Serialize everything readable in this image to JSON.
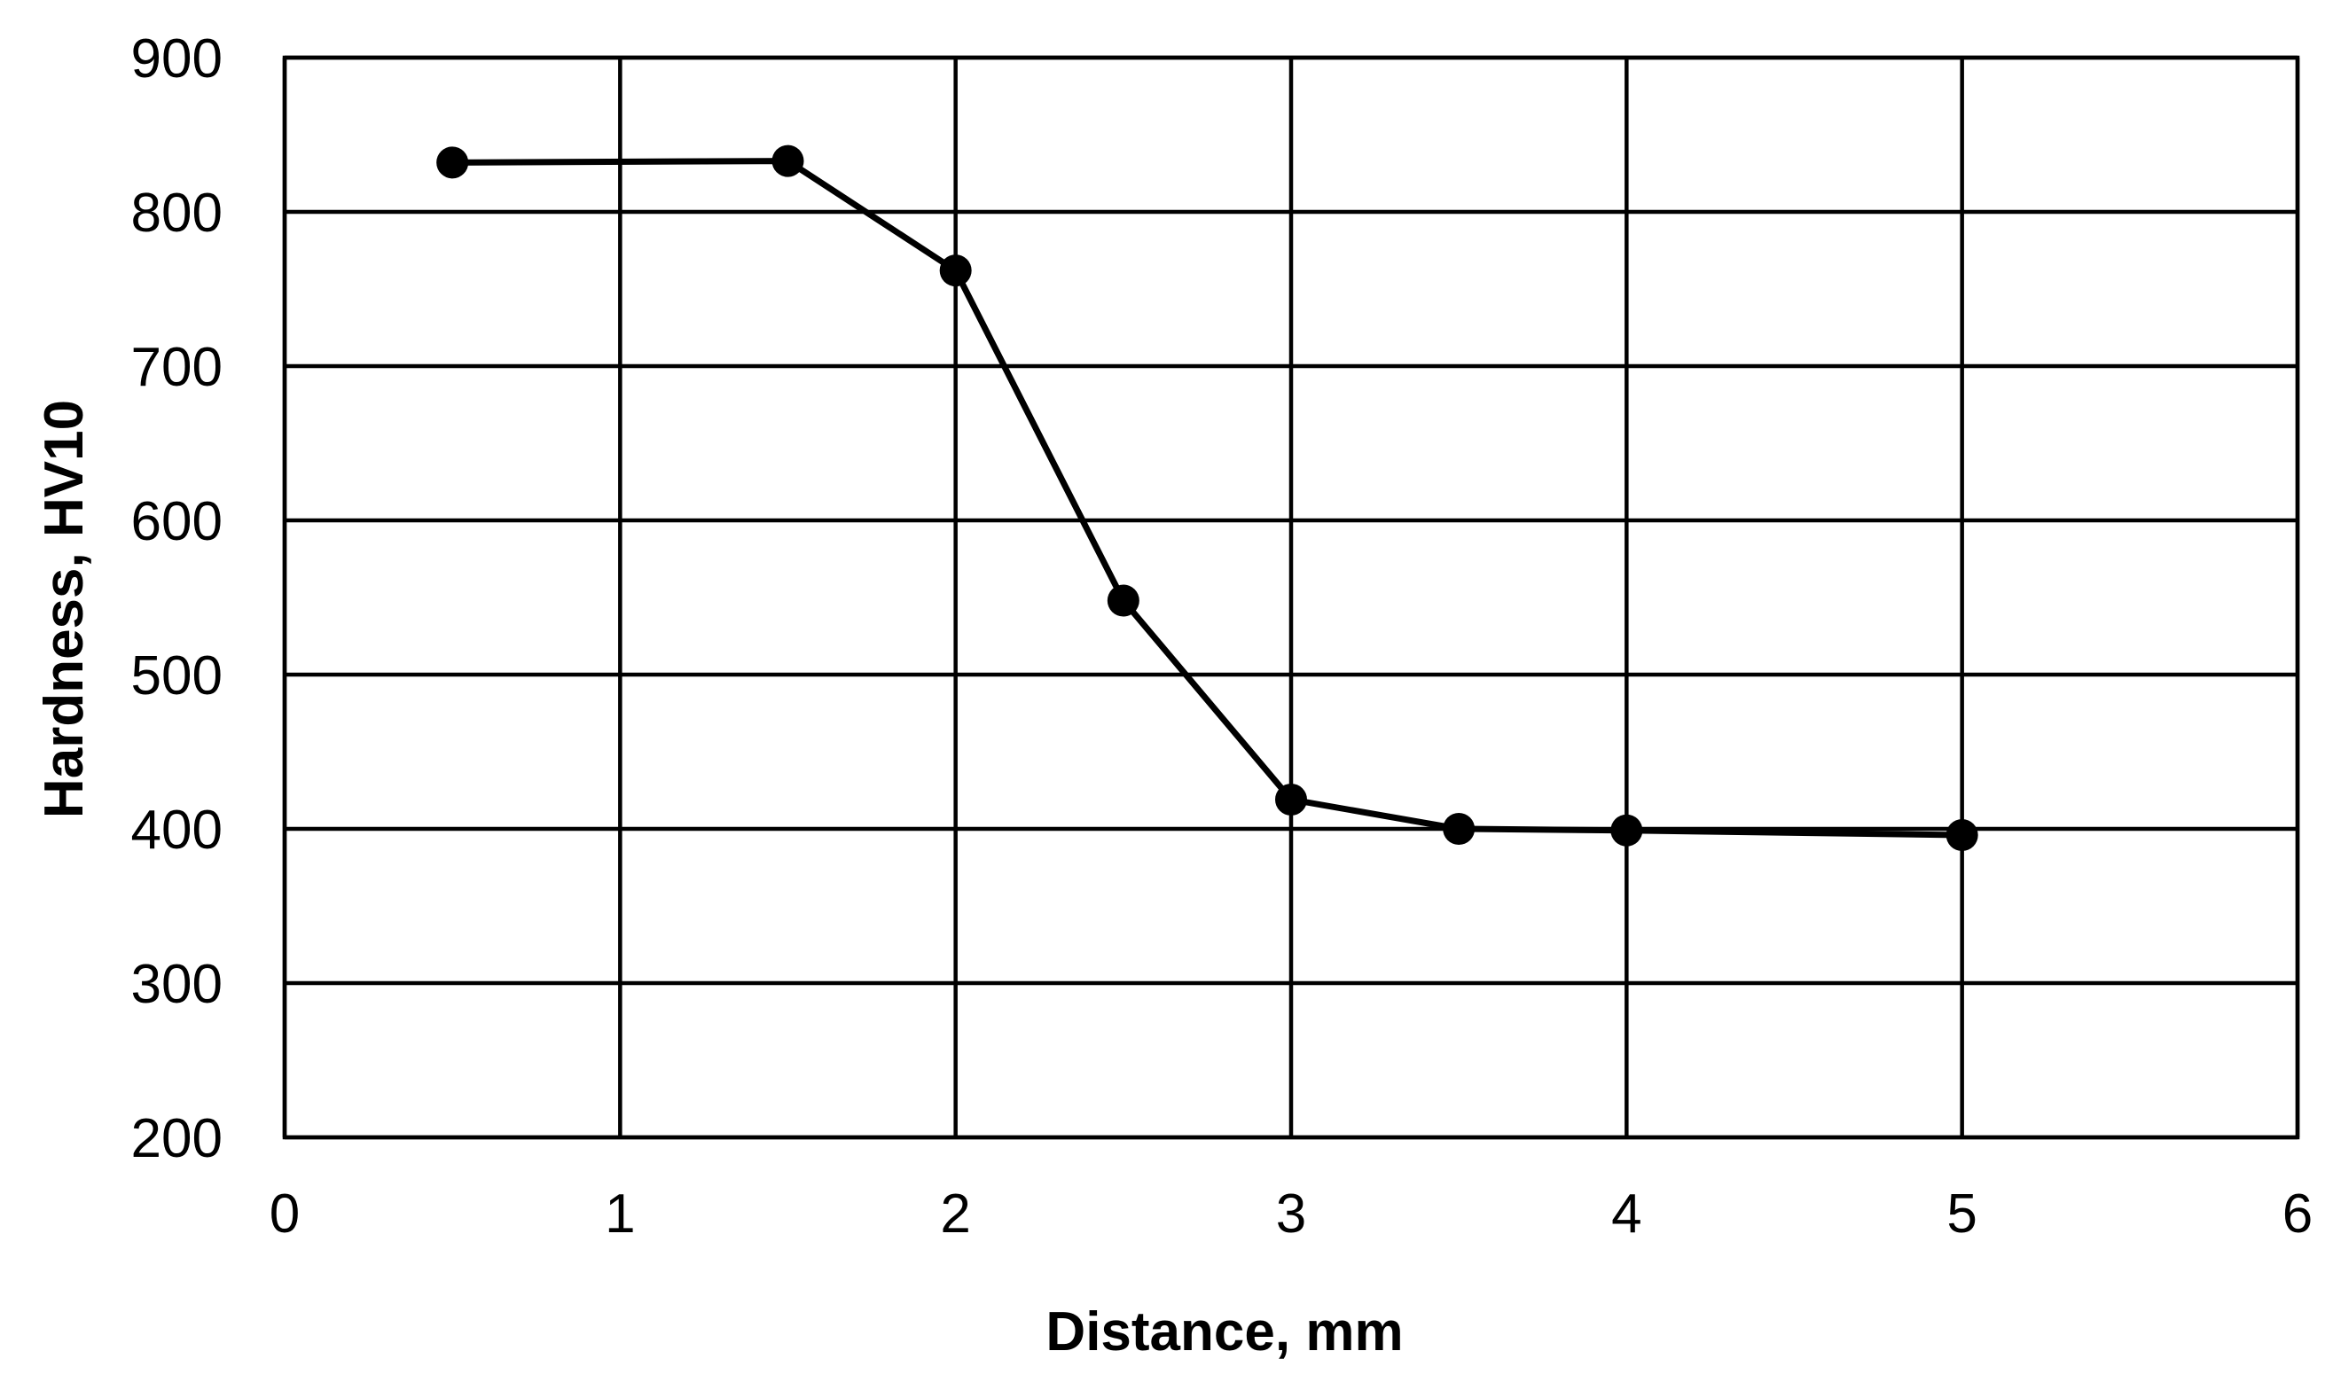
{
  "chart_data": {
    "type": "line",
    "title": "",
    "xlabel": "Distance, mm",
    "ylabel": "Hardness,  HV10",
    "xlim": [
      0,
      6
    ],
    "ylim": [
      200,
      900
    ],
    "x_ticks": [
      0,
      1,
      2,
      3,
      4,
      5,
      6
    ],
    "y_ticks": [
      200,
      300,
      400,
      500,
      600,
      700,
      800,
      900
    ],
    "x_tick_labels": [
      "0",
      "1",
      "2",
      "3",
      "4",
      "5",
      "6"
    ],
    "y_tick_labels": [
      "200",
      "300",
      "400",
      "500",
      "600",
      "700",
      "800",
      "900"
    ],
    "grid": true,
    "legend": "none",
    "colors": {
      "series": "#000000",
      "grid": "#000000",
      "background": "#ffffff"
    },
    "series": [
      {
        "x": [
          0.5,
          1.5,
          2.0,
          2.5,
          3.0,
          3.5,
          4.0,
          5.0
        ],
        "values": [
          832,
          833,
          762,
          548,
          419,
          400,
          399,
          396
        ],
        "marker": "circle"
      }
    ]
  }
}
